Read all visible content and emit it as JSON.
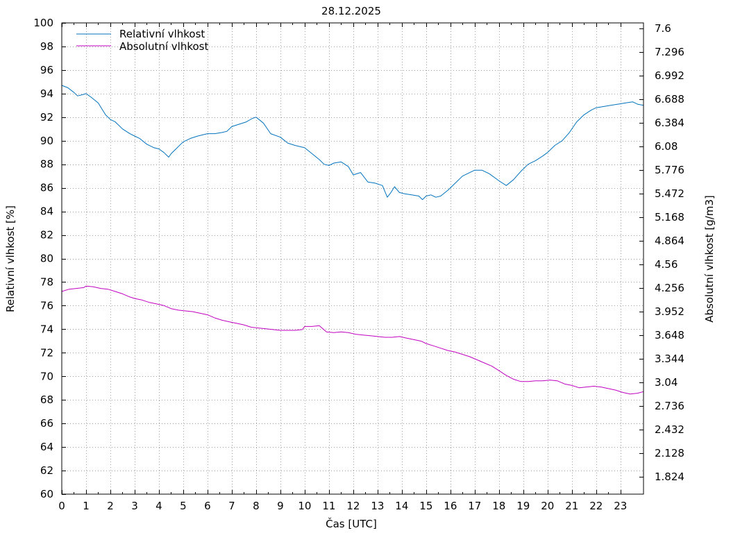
{
  "chart_data": {
    "type": "line",
    "title": "28.12.2025",
    "xlabel": "Čas [UTC]",
    "ylabel": "Relativní vlhkost [%]",
    "y2label": "Absolutní vlhkost [g/m3]",
    "xlim": [
      0,
      23.95
    ],
    "ylim": [
      60,
      100
    ],
    "y2lim": [
      1.6,
      7.67
    ],
    "x_ticks": [
      "0",
      "1",
      "2",
      "3",
      "4",
      "5",
      "6",
      "7",
      "8",
      "9",
      "10",
      "11",
      "12",
      "13",
      "14",
      "15",
      "16",
      "17",
      "18",
      "19",
      "20",
      "21",
      "22",
      "23"
    ],
    "y_ticks": [
      "60",
      "62",
      "64",
      "66",
      "68",
      "70",
      "72",
      "74",
      "76",
      "78",
      "80",
      "82",
      "84",
      "86",
      "88",
      "90",
      "92",
      "94",
      "96",
      "98",
      "100"
    ],
    "y2_ticks": [
      "1.824",
      "2.128",
      "2.432",
      "2.736",
      "3.04",
      "3.344",
      "3.648",
      "3.952",
      "4.256",
      "4.56",
      "4.864",
      "5.168",
      "5.472",
      "5.776",
      "6.08",
      "6.384",
      "6.688",
      "6.992",
      "7.296",
      "7.6"
    ],
    "grid": true,
    "legend": "top-left",
    "series": [
      {
        "name": "Relativní vlhkost",
        "color": "#0072bd",
        "axis": "left",
        "x": [
          0,
          0.25,
          0.5,
          0.65,
          0.85,
          1.0,
          1.2,
          1.5,
          1.8,
          2.0,
          2.2,
          2.5,
          2.8,
          3.0,
          3.2,
          3.5,
          3.8,
          4.0,
          4.2,
          4.4,
          4.5,
          4.7,
          4.9,
          5.0,
          5.3,
          5.6,
          6.0,
          6.3,
          6.6,
          6.8,
          7.0,
          7.3,
          7.6,
          7.85,
          8.0,
          8.3,
          8.6,
          9.0,
          9.3,
          9.6,
          10.0,
          10.3,
          10.6,
          10.8,
          11.0,
          11.2,
          11.5,
          11.8,
          12.0,
          12.3,
          12.6,
          12.9,
          13.2,
          13.4,
          13.55,
          13.7,
          13.9,
          14.1,
          14.4,
          14.7,
          14.85,
          15.0,
          15.2,
          15.4,
          15.6,
          15.9,
          16.2,
          16.5,
          16.8,
          17.0,
          17.3,
          17.6,
          18.0,
          18.3,
          18.6,
          18.9,
          19.2,
          19.5,
          19.8,
          20.0,
          20.3,
          20.6,
          20.9,
          21.2,
          21.5,
          21.8,
          22.0,
          22.3,
          22.6,
          22.9,
          23.2,
          23.5,
          23.7,
          23.95
        ],
        "values": [
          94.7,
          94.5,
          94.1,
          93.8,
          93.9,
          94.0,
          93.7,
          93.2,
          92.2,
          91.8,
          91.6,
          91.0,
          90.6,
          90.4,
          90.2,
          89.7,
          89.4,
          89.3,
          89.0,
          88.6,
          88.9,
          89.3,
          89.7,
          89.9,
          90.2,
          90.4,
          90.6,
          90.6,
          90.7,
          90.8,
          91.2,
          91.4,
          91.6,
          91.9,
          92.0,
          91.5,
          90.6,
          90.3,
          89.8,
          89.6,
          89.4,
          88.9,
          88.4,
          88.0,
          87.9,
          88.1,
          88.2,
          87.8,
          87.1,
          87.3,
          86.5,
          86.4,
          86.2,
          85.2,
          85.6,
          86.1,
          85.6,
          85.5,
          85.4,
          85.3,
          85.0,
          85.3,
          85.4,
          85.2,
          85.3,
          85.8,
          86.4,
          87.0,
          87.3,
          87.5,
          87.5,
          87.2,
          86.6,
          86.2,
          86.7,
          87.4,
          88.0,
          88.3,
          88.7,
          89.0,
          89.6,
          90.0,
          90.7,
          91.6,
          92.2,
          92.6,
          92.8,
          92.9,
          93.0,
          93.1,
          93.2,
          93.3,
          93.1,
          93.0
        ]
      },
      {
        "name": "Absolutní vlhkost",
        "color": "#c000c0",
        "axis": "right",
        "x": [
          0,
          0.3,
          0.6,
          0.9,
          1.0,
          1.3,
          1.6,
          1.9,
          2.2,
          2.5,
          2.8,
          3.0,
          3.3,
          3.6,
          3.9,
          4.2,
          4.5,
          4.8,
          5.1,
          5.4,
          5.7,
          6.0,
          6.3,
          6.6,
          6.9,
          7.2,
          7.5,
          7.8,
          8.1,
          8.4,
          8.7,
          9.0,
          9.3,
          9.6,
          9.9,
          10.0,
          10.3,
          10.6,
          10.9,
          11.2,
          11.5,
          11.8,
          12.1,
          12.4,
          12.7,
          13.0,
          13.3,
          13.6,
          13.9,
          14.2,
          14.5,
          14.8,
          15.0,
          15.3,
          15.6,
          15.9,
          16.2,
          16.5,
          16.8,
          17.1,
          17.4,
          17.7,
          18.0,
          18.3,
          18.6,
          18.9,
          19.2,
          19.5,
          19.8,
          20.1,
          20.4,
          20.7,
          21.0,
          21.3,
          21.6,
          21.9,
          22.2,
          22.5,
          22.8,
          23.1,
          23.4,
          23.7,
          23.95
        ],
        "values": [
          4.21,
          4.24,
          4.25,
          4.26,
          4.28,
          4.27,
          4.25,
          4.24,
          4.21,
          4.18,
          4.14,
          4.12,
          4.1,
          4.07,
          4.05,
          4.03,
          3.99,
          3.97,
          3.96,
          3.95,
          3.93,
          3.91,
          3.87,
          3.84,
          3.82,
          3.8,
          3.78,
          3.75,
          3.74,
          3.73,
          3.72,
          3.71,
          3.71,
          3.71,
          3.72,
          3.76,
          3.76,
          3.77,
          3.69,
          3.68,
          3.69,
          3.68,
          3.66,
          3.65,
          3.64,
          3.63,
          3.62,
          3.62,
          3.63,
          3.61,
          3.59,
          3.57,
          3.54,
          3.51,
          3.48,
          3.45,
          3.43,
          3.4,
          3.37,
          3.33,
          3.29,
          3.25,
          3.19,
          3.13,
          3.08,
          3.05,
          3.05,
          3.06,
          3.06,
          3.07,
          3.06,
          3.02,
          3.0,
          2.97,
          2.98,
          2.99,
          2.98,
          2.96,
          2.94,
          2.91,
          2.89,
          2.9,
          2.92
        ]
      }
    ]
  }
}
